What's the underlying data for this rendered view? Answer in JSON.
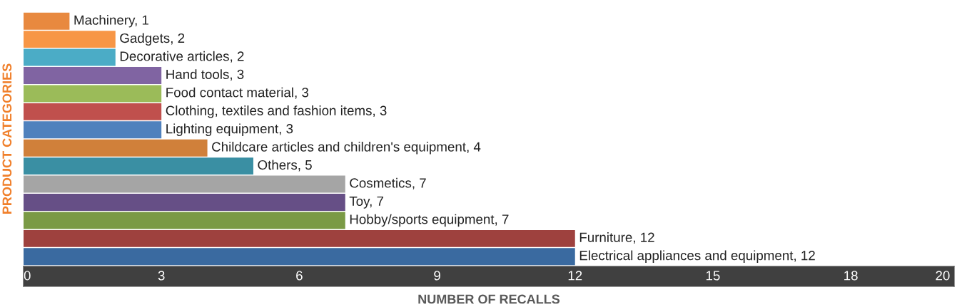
{
  "chart_data": {
    "type": "bar",
    "orientation": "horizontal",
    "xlabel": "NUMBER OF RECALLS",
    "ylabel": "PRODUCT CATEGORIES",
    "categories": [
      null,
      null,
      null,
      null,
      null,
      null,
      null,
      null,
      null,
      null,
      null,
      null,
      null,
      null
    ],
    "values": [
      1,
      2,
      2,
      3,
      3,
      3,
      3,
      4,
      5,
      7,
      7,
      7,
      12,
      12
    ],
    "value_labels": [
      "Machinery, 1",
      "Gadgets, 2",
      "Decorative articles, 2",
      "Hand tools, 3",
      "Food contact material, 3",
      "Clothing, textiles and fashion items, 3",
      "Lighting equipment, 3",
      "Childcare articles and children's equipment, 4",
      "Others, 5",
      "Cosmetics, 7",
      "Toy, 7",
      "Hobby/sports equipment, 7",
      "Furniture, 12",
      "Electrical appliances and equipment, 12"
    ],
    "colors": [
      "#e8893f",
      "#f79646",
      "#4bacc6",
      "#8064a2",
      "#9bbb59",
      "#c0504d",
      "#4f81bd",
      "#d0803a",
      "#3a8fa3",
      "#a5a5a5",
      "#664f86",
      "#7a9a45",
      "#9e413e",
      "#3a6aa0"
    ],
    "xlim": [
      0,
      20.25
    ],
    "xticks": [
      0,
      3,
      6,
      9,
      12,
      15,
      18,
      20
    ],
    "tick_labels": "x",
    "grid": false,
    "legend": false
  }
}
